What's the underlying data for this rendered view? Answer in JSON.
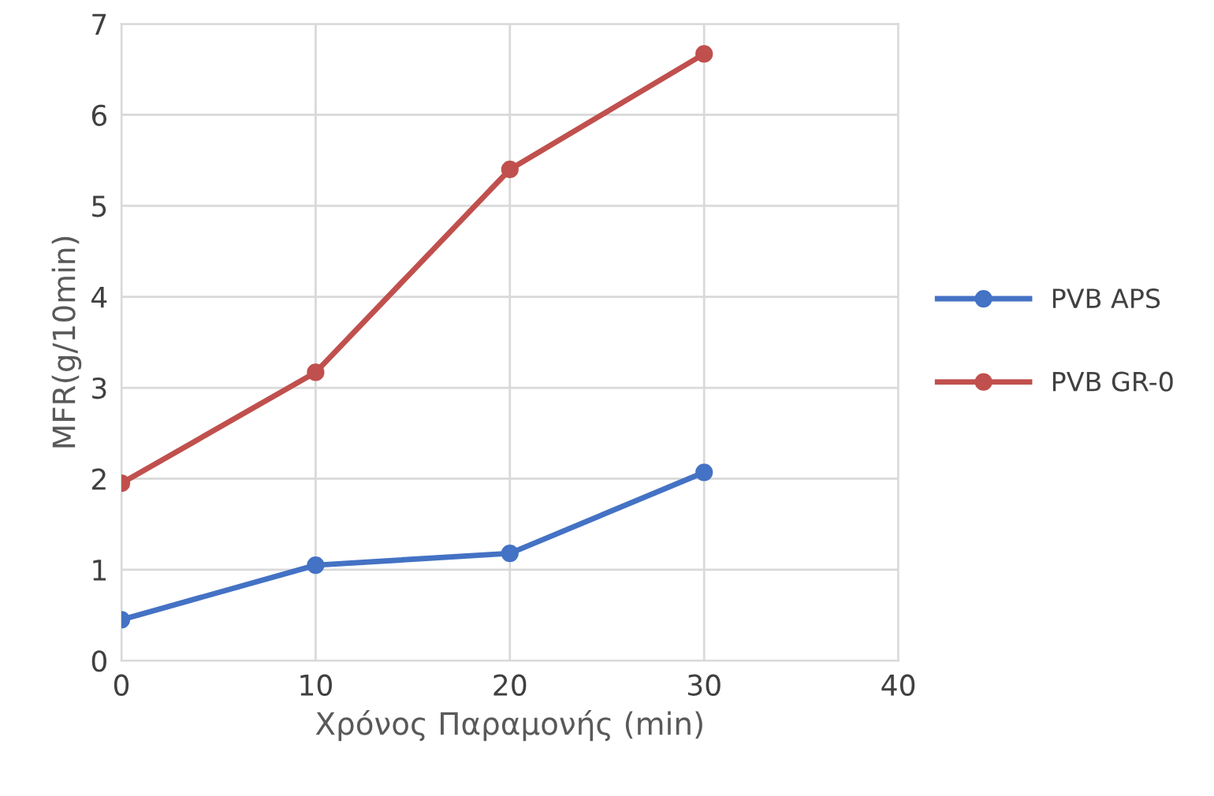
{
  "chart_data": {
    "type": "line",
    "xlabel": "Χρόνος Παραμονής (min)",
    "ylabel": "MFR(g/10min)",
    "x": [
      0,
      10,
      20,
      30
    ],
    "series": [
      {
        "name": "PVB APS",
        "color": "#4472c4",
        "values": [
          0.45,
          1.05,
          1.18,
          2.07
        ]
      },
      {
        "name": "PVB GR-0",
        "color": "#c0504d",
        "values": [
          1.95,
          3.17,
          5.4,
          6.67
        ]
      }
    ],
    "xlim": [
      0,
      40
    ],
    "xticks": [
      0,
      10,
      20,
      30,
      40
    ],
    "ylim": [
      0,
      7
    ],
    "yticks": [
      0,
      1,
      2,
      3,
      4,
      5,
      6,
      7
    ],
    "grid": true,
    "legend": "right",
    "marker": "circle",
    "line_style": "solid"
  }
}
